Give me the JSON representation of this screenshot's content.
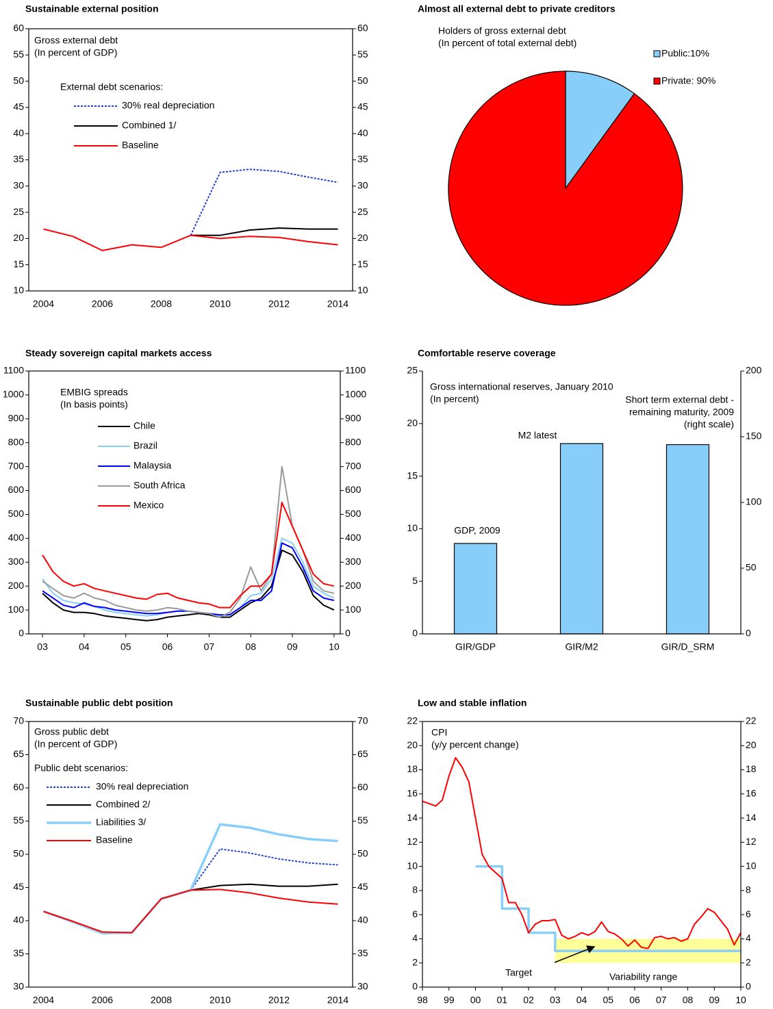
{
  "chart_data": [
    {
      "type": "line",
      "title": "Sustainable external position",
      "annotations": [
        "Gross external debt",
        "(In percent of GDP)",
        "External debt scenarios:"
      ],
      "categories": [
        "2004",
        null,
        "2006",
        null,
        "2008",
        null,
        "2010",
        null,
        "2012",
        null,
        "2014"
      ],
      "ylim": [
        10,
        60
      ],
      "yticks": [
        10,
        15,
        20,
        25,
        30,
        35,
        40,
        45,
        50,
        55,
        60
      ],
      "y2lim": [
        10,
        60
      ],
      "y2ticks": [
        10,
        15,
        20,
        25,
        30,
        35,
        40,
        45,
        50,
        55,
        60
      ],
      "series": [
        {
          "name": "30% real depreciation",
          "color": "#1f3fd6",
          "dashed": true,
          "values": [
            null,
            null,
            null,
            null,
            null,
            20.6,
            32.6,
            33.2,
            32.8,
            31.7,
            30.7
          ]
        },
        {
          "name": "Combined 1/",
          "color": "#000000",
          "values": [
            null,
            null,
            null,
            null,
            null,
            20.6,
            20.6,
            21.6,
            22.0,
            21.8,
            21.8
          ]
        },
        {
          "name": "Baseline",
          "color": "#ff0000",
          "values": [
            21.8,
            20.4,
            17.7,
            18.8,
            18.3,
            20.6,
            20.0,
            20.4,
            20.2,
            19.4,
            18.8
          ]
        }
      ]
    },
    {
      "type": "pie",
      "title": "Almost all external debt to private creditors",
      "annotations": [
        "Holders of gross external debt",
        "(In percent of total external debt)"
      ],
      "categories": [
        "Public:10%",
        "Private: 90%"
      ],
      "values": [
        10,
        90
      ],
      "colors": [
        "#87cefa",
        "#ff0000"
      ]
    },
    {
      "type": "line",
      "title": "Steady sovereign capital markets access",
      "annotations": [
        "EMBIG spreads",
        "(In basis points)"
      ],
      "x": [
        2003,
        2003.25,
        2003.5,
        2003.75,
        2004,
        2004.25,
        2004.5,
        2004.75,
        2005,
        2005.25,
        2005.5,
        2005.75,
        2006,
        2006.25,
        2006.5,
        2006.75,
        2007,
        2007.25,
        2007.5,
        2007.75,
        2008,
        2008.25,
        2008.5,
        2008.75,
        2009,
        2009.25,
        2009.5,
        2009.75,
        2010
      ],
      "xlim": [
        2002.67,
        2010.15
      ],
      "xticks": [
        {
          "value": 2003,
          "label": "03"
        },
        {
          "value": 2004,
          "label": "04"
        },
        {
          "value": 2005,
          "label": "05"
        },
        {
          "value": 2006,
          "label": "06"
        },
        {
          "value": 2007,
          "label": "07"
        },
        {
          "value": 2008,
          "label": "08"
        },
        {
          "value": 2009,
          "label": "09"
        },
        {
          "value": 2010,
          "label": "10"
        }
      ],
      "ylim": [
        0,
        1100
      ],
      "yticks": [
        0,
        100,
        200,
        300,
        400,
        500,
        600,
        700,
        800,
        900,
        1000,
        1100
      ],
      "y2lim": [
        0,
        1100
      ],
      "y2ticks": [
        0,
        100,
        200,
        300,
        400,
        500,
        600,
        700,
        800,
        900,
        1000,
        1100
      ],
      "series": [
        {
          "name": "Chile",
          "color": "#000000",
          "values": [
            170,
            130,
            100,
            90,
            90,
            85,
            75,
            70,
            65,
            60,
            55,
            60,
            70,
            75,
            80,
            85,
            80,
            70,
            70,
            100,
            130,
            150,
            200,
            350,
            330,
            260,
            160,
            120,
            100
          ]
        },
        {
          "name": "Brazil",
          "color": "#87cefa",
          "values": [
            230,
            170,
            140,
            130,
            125,
            115,
            100,
            90,
            85,
            80,
            75,
            80,
            90,
            95,
            95,
            90,
            85,
            75,
            80,
            110,
            160,
            170,
            230,
            400,
            380,
            300,
            200,
            170,
            150
          ]
        },
        {
          "name": "Malaysia",
          "color": "#0000ff",
          "values": [
            180,
            150,
            120,
            110,
            130,
            115,
            110,
            100,
            95,
            90,
            85,
            85,
            90,
            95,
            95,
            90,
            85,
            80,
            80,
            110,
            140,
            140,
            180,
            380,
            360,
            280,
            180,
            150,
            140
          ]
        },
        {
          "name": "South Africa",
          "color": "#999999",
          "values": [
            220,
            190,
            160,
            150,
            170,
            150,
            140,
            120,
            110,
            100,
            95,
            100,
            110,
            105,
            95,
            90,
            85,
            70,
            90,
            150,
            280,
            180,
            250,
            700,
            450,
            350,
            220,
            180,
            170
          ]
        },
        {
          "name": "Mexico",
          "color": "#ff0000",
          "values": [
            330,
            260,
            220,
            200,
            210,
            190,
            180,
            170,
            160,
            150,
            145,
            165,
            170,
            150,
            140,
            130,
            125,
            110,
            110,
            160,
            200,
            200,
            250,
            550,
            450,
            350,
            250,
            210,
            200
          ]
        }
      ]
    },
    {
      "type": "bar",
      "title": "Comfortable reserve coverage",
      "annotations": [
        "Gross international reserves, January 2010",
        "(In percent)"
      ],
      "categories": [
        "GIR/GDP",
        "GIR/M2",
        "GIR/D_SRM"
      ],
      "bar_labels": [
        [
          "GDP, 2009"
        ],
        [
          "M2 latest"
        ],
        [
          "Short term external debt -",
          "remaining maturity, 2009",
          "(right scale)"
        ]
      ],
      "ylim": [
        0,
        25
      ],
      "yticks": [
        0,
        5,
        10,
        15,
        20,
        25
      ],
      "y2lim": [
        0,
        200
      ],
      "y2ticks": [
        0,
        50,
        100,
        150,
        200
      ],
      "series": [
        {
          "color": "#87cefa",
          "values": [
            8.6,
            18.1,
            null
          ]
        },
        {
          "color": "#87cefa",
          "axis": "y2",
          "values": [
            null,
            null,
            144
          ]
        }
      ]
    },
    {
      "type": "line",
      "title": "Sustainable public debt position",
      "annotations": [
        "Gross public debt",
        "(In percent of GDP)",
        "Public debt scenarios:"
      ],
      "categories": [
        "2004",
        null,
        "2006",
        null,
        "2008",
        null,
        "2010",
        null,
        "2012",
        null,
        "2014"
      ],
      "ylim": [
        30,
        70
      ],
      "yticks": [
        30,
        35,
        40,
        45,
        50,
        55,
        60,
        65,
        70
      ],
      "y2lim": [
        30,
        70
      ],
      "y2ticks": [
        30,
        35,
        40,
        45,
        50,
        55,
        60,
        65,
        70
      ],
      "series": [
        {
          "name": "30% real depreciation",
          "color": "#1f3fd6",
          "dashed": true,
          "values": [
            null,
            null,
            null,
            null,
            null,
            44.6,
            50.8,
            50.2,
            49.3,
            48.7,
            48.4
          ]
        },
        {
          "name": "Combined 2/",
          "color": "#000000",
          "values": [
            null,
            null,
            null,
            null,
            null,
            44.6,
            45.3,
            45.5,
            45.2,
            45.2,
            45.5
          ]
        },
        {
          "name": "Liabilities 3/",
          "color": "#87cefa",
          "thick": true,
          "values": [
            41.4,
            39.8,
            38.1,
            38.2,
            43.3,
            44.6,
            54.5,
            54.0,
            53.0,
            52.3,
            52.0
          ]
        },
        {
          "name": "Baseline",
          "color": "#ff0000",
          "values": [
            41.4,
            39.9,
            38.3,
            38.2,
            43.3,
            44.6,
            44.7,
            44.2,
            43.4,
            42.8,
            42.5
          ]
        }
      ]
    },
    {
      "type": "line",
      "title": "Low and stable inflation",
      "annotations": [
        "CPI",
        "(y/y percent change)",
        "Target",
        "Variability range"
      ],
      "x": [
        1998,
        1998.25,
        1998.5,
        1998.75,
        1999,
        1999.25,
        1999.5,
        1999.75,
        2000,
        2000.25,
        2000.5,
        2000.75,
        2001,
        2001.25,
        2001.5,
        2001.75,
        2002,
        2002.25,
        2002.5,
        2002.75,
        2003,
        2003.25,
        2003.5,
        2003.75,
        2004,
        2004.25,
        2004.5,
        2004.75,
        2005,
        2005.25,
        2005.5,
        2005.75,
        2006,
        2006.25,
        2006.5,
        2006.75,
        2007,
        2007.25,
        2007.5,
        2007.75,
        2008,
        2008.25,
        2008.5,
        2008.75,
        2009,
        2009.25,
        2009.5,
        2009.75,
        2010
      ],
      "xlim": [
        1998,
        2010
      ],
      "xticks": [
        {
          "value": 1998,
          "label": "98"
        },
        {
          "value": 1999,
          "label": "99"
        },
        {
          "value": 2000,
          "label": "00"
        },
        {
          "value": 2001,
          "label": "01"
        },
        {
          "value": 2002,
          "label": "02"
        },
        {
          "value": 2003,
          "label": "03"
        },
        {
          "value": 2004,
          "label": "04"
        },
        {
          "value": 2005,
          "label": "05"
        },
        {
          "value": 2006,
          "label": "06"
        },
        {
          "value": 2007,
          "label": "07"
        },
        {
          "value": 2008,
          "label": "08"
        },
        {
          "value": 2009,
          "label": "09"
        },
        {
          "value": 2010,
          "label": "10"
        }
      ],
      "ylim": [
        0,
        22
      ],
      "yticks": [
        0,
        2,
        4,
        6,
        8,
        10,
        12,
        14,
        16,
        18,
        20,
        22
      ],
      "y2lim": [
        0,
        22
      ],
      "y2ticks": [
        0,
        2,
        4,
        6,
        8,
        10,
        12,
        14,
        16,
        18,
        20,
        22
      ],
      "band": {
        "x": [
          2003,
          2010
        ],
        "y": [
          2,
          4
        ],
        "color": "#ffff99"
      },
      "series": [
        {
          "color": "#87cefa",
          "thick": true,
          "x": [
            2000,
            2001,
            2001,
            2002,
            2002,
            2003,
            2003,
            2010
          ],
          "values": [
            10,
            10,
            6.5,
            6.5,
            4.5,
            4.5,
            3,
            3
          ]
        },
        {
          "color": "#ff0000",
          "values": [
            15.4,
            15.2,
            15.0,
            15.5,
            17.5,
            19.0,
            18.2,
            17.0,
            14.0,
            11.0,
            10.0,
            9.5,
            9.0,
            7.0,
            7.0,
            6.0,
            4.5,
            5.2,
            5.5,
            5.5,
            5.6,
            4.3,
            4.0,
            4.2,
            4.5,
            4.3,
            4.6,
            5.4,
            4.6,
            4.4,
            4.0,
            3.4,
            3.9,
            3.3,
            3.2,
            4.1,
            4.2,
            4.0,
            4.1,
            3.8,
            4.0,
            5.2,
            5.8,
            6.5,
            6.2,
            5.5,
            4.8,
            3.5,
            4.5
          ]
        }
      ]
    }
  ]
}
